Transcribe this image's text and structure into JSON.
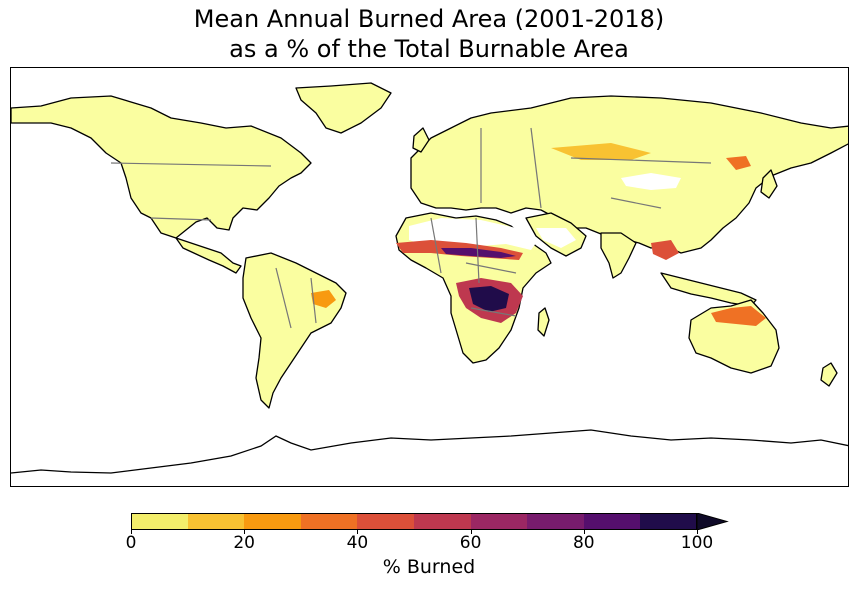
{
  "title_line1": "Mean Annual Burned Area (2001-2018)",
  "title_line2": "as a % of the Total Burnable Area",
  "colorbar": {
    "label": "% Burned",
    "ticks": [
      "0",
      "20",
      "40",
      "60",
      "80",
      "100"
    ],
    "tick_values": [
      0,
      20,
      40,
      60,
      80,
      100
    ],
    "bins": [
      {
        "from": 0,
        "to": 10,
        "color": "#f3ee6b"
      },
      {
        "from": 10,
        "to": 20,
        "color": "#f8c232"
      },
      {
        "from": 20,
        "to": 30,
        "color": "#f89a10"
      },
      {
        "from": 30,
        "to": 40,
        "color": "#ef7124"
      },
      {
        "from": 40,
        "to": 50,
        "color": "#dc5039"
      },
      {
        "from": 50,
        "to": 60,
        "color": "#be384f"
      },
      {
        "from": 60,
        "to": 70,
        "color": "#9b2763"
      },
      {
        "from": 70,
        "to": 80,
        "color": "#781c6d"
      },
      {
        "from": 80,
        "to": 90,
        "color": "#550f6d"
      },
      {
        "from": 90,
        "to": 100,
        "color": "#200c4a"
      }
    ],
    "extend": "max",
    "over_color": "#0f0a28"
  },
  "colors": {
    "land_low": "#fafea0",
    "border": "#777777",
    "coast": "#000000"
  }
}
